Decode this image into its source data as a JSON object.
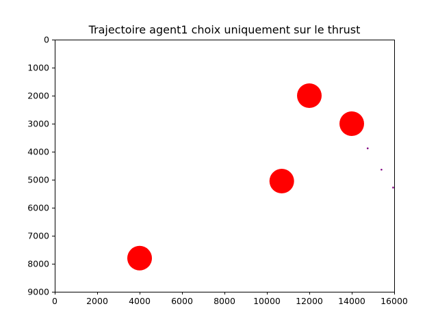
{
  "chart_data": {
    "type": "scatter",
    "title": "Trajectoire agent1 choix uniquement sur le thrust",
    "xlabel": "",
    "ylabel": "",
    "xlim": [
      0,
      16000
    ],
    "ylim": [
      9000,
      0
    ],
    "y_inverted": true,
    "grid": false,
    "xticks": [
      0,
      2000,
      4000,
      6000,
      8000,
      10000,
      12000,
      14000,
      16000
    ],
    "yticks": [
      0,
      1000,
      2000,
      3000,
      4000,
      5000,
      6000,
      7000,
      8000,
      9000
    ],
    "series": [
      {
        "color": "#ff0000",
        "marker": "large-circle",
        "points": [
          {
            "x": 12000,
            "y": 2000
          },
          {
            "x": 14000,
            "y": 3000
          },
          {
            "x": 10700,
            "y": 5050
          },
          {
            "x": 4000,
            "y": 7800
          }
        ]
      },
      {
        "color": "#800080",
        "marker": "small-dot",
        "points": [
          {
            "x": 14750,
            "y": 3880
          },
          {
            "x": 15400,
            "y": 4640
          },
          {
            "x": 15950,
            "y": 5280
          }
        ]
      }
    ]
  }
}
